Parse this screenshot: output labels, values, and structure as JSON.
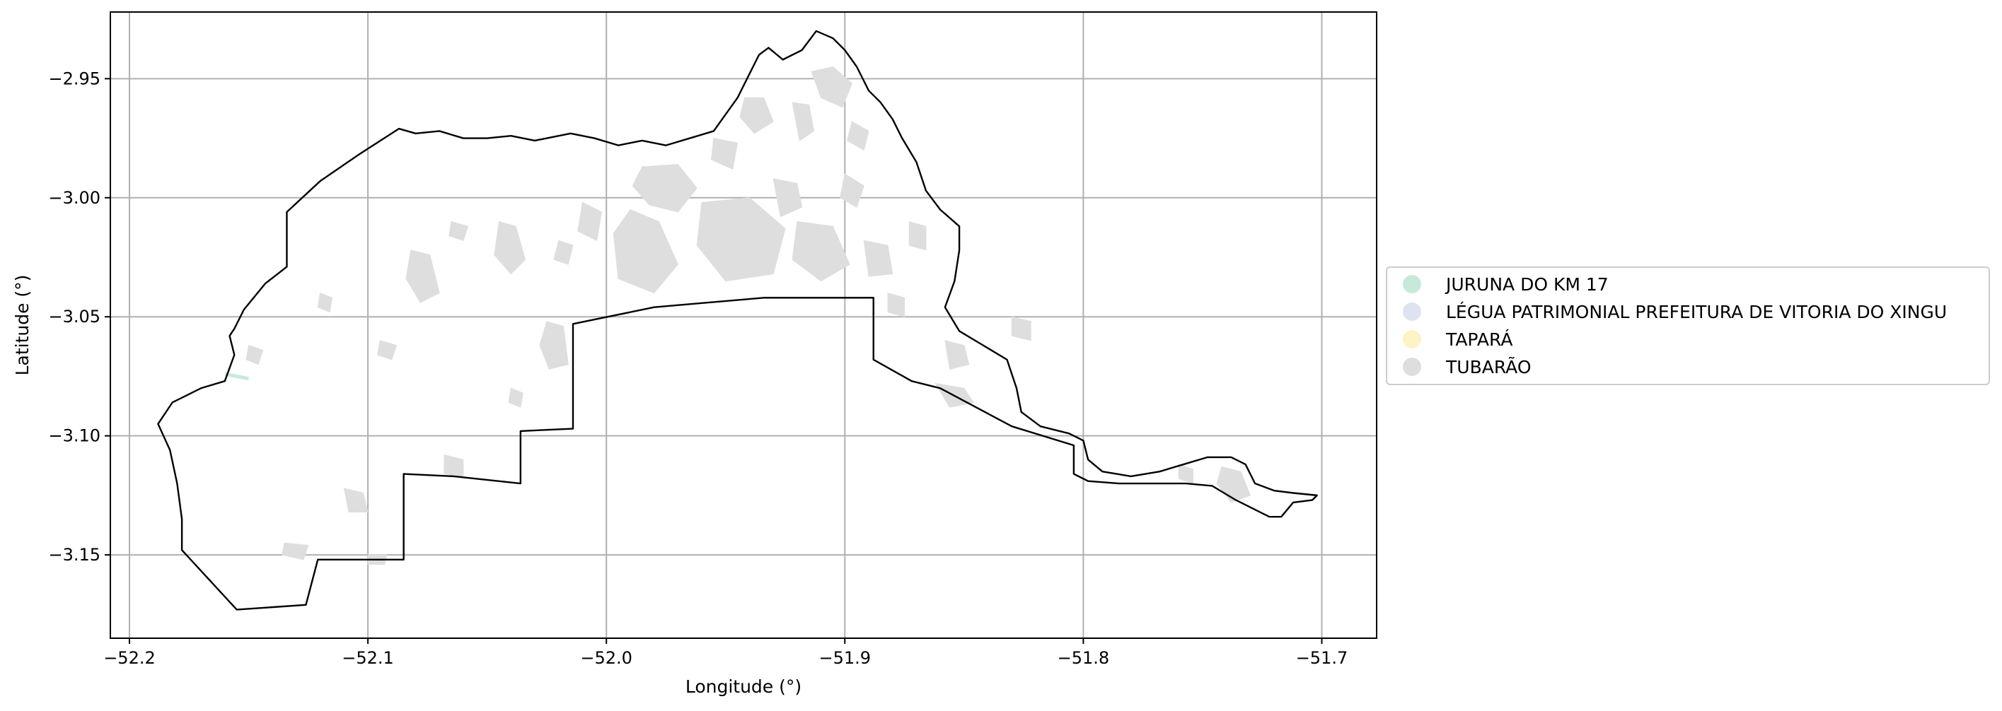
{
  "chart_data": {
    "type": "map",
    "xlabel": "Longitude (°)",
    "ylabel": "Latitude (°)",
    "xlim": [
      -52.208,
      -51.677
    ],
    "ylim": [
      -3.185,
      -2.922
    ],
    "x_ticks": [
      -52.2,
      -52.1,
      -52.0,
      -51.9,
      -51.8,
      -51.7
    ],
    "x_tick_labels": [
      "−52.2",
      "−52.1",
      "−52.0",
      "−51.9",
      "−51.8",
      "−51.7"
    ],
    "y_ticks": [
      -2.95,
      -3.0,
      -3.05,
      -3.1,
      -3.15
    ],
    "y_tick_labels": [
      "−2.95",
      "−3.00",
      "−3.05",
      "−3.10",
      "−3.15"
    ],
    "grid": true,
    "legend_position": "center-right-outside",
    "categories": [
      {
        "name": "JURUNA DO KM 17",
        "color": "#c7e9d9"
      },
      {
        "name": "LÉGUA PATRIMONIAL PREFEITURA DE VITORIA DO XINGU",
        "color": "#dfe3f1"
      },
      {
        "name": "TAPARÁ",
        "color": "#fdf3c4"
      },
      {
        "name": "TUBARÃO",
        "color": "#dedede"
      }
    ],
    "boundary": [
      [
        -52.087,
        -2.971
      ],
      [
        -52.08,
        -2.973
      ],
      [
        -52.07,
        -2.972
      ],
      [
        -52.06,
        -2.975
      ],
      [
        -52.05,
        -2.975
      ],
      [
        -52.04,
        -2.974
      ],
      [
        -52.03,
        -2.976
      ],
      [
        -52.015,
        -2.973
      ],
      [
        -52.005,
        -2.975
      ],
      [
        -51.995,
        -2.978
      ],
      [
        -51.985,
        -2.976
      ],
      [
        -51.975,
        -2.978
      ],
      [
        -51.965,
        -2.975
      ],
      [
        -51.955,
        -2.972
      ],
      [
        -51.95,
        -2.965
      ],
      [
        -51.945,
        -2.958
      ],
      [
        -51.94,
        -2.948
      ],
      [
        -51.936,
        -2.94
      ],
      [
        -51.932,
        -2.937
      ],
      [
        -51.926,
        -2.942
      ],
      [
        -51.918,
        -2.938
      ],
      [
        -51.912,
        -2.93
      ],
      [
        -51.905,
        -2.933
      ],
      [
        -51.9,
        -2.938
      ],
      [
        -51.895,
        -2.945
      ],
      [
        -51.89,
        -2.955
      ],
      [
        -51.885,
        -2.96
      ],
      [
        -51.88,
        -2.967
      ],
      [
        -51.876,
        -2.975
      ],
      [
        -51.87,
        -2.985
      ],
      [
        -51.866,
        -2.997
      ],
      [
        -51.86,
        -3.005
      ],
      [
        -51.852,
        -3.012
      ],
      [
        -51.852,
        -3.022
      ],
      [
        -51.854,
        -3.035
      ],
      [
        -51.858,
        -3.046
      ],
      [
        -51.852,
        -3.056
      ],
      [
        -51.842,
        -3.062
      ],
      [
        -51.832,
        -3.068
      ],
      [
        -51.828,
        -3.08
      ],
      [
        -51.826,
        -3.09
      ],
      [
        -51.818,
        -3.096
      ],
      [
        -51.806,
        -3.099
      ],
      [
        -51.8,
        -3.102
      ],
      [
        -51.798,
        -3.11
      ],
      [
        -51.792,
        -3.115
      ],
      [
        -51.78,
        -3.117
      ],
      [
        -51.768,
        -3.115
      ],
      [
        -51.758,
        -3.112
      ],
      [
        -51.748,
        -3.109
      ],
      [
        -51.738,
        -3.109
      ],
      [
        -51.732,
        -3.112
      ],
      [
        -51.728,
        -3.12
      ],
      [
        -51.72,
        -3.123
      ],
      [
        -51.712,
        -3.124
      ],
      [
        -51.702,
        -3.125
      ],
      [
        -51.704,
        -3.127
      ],
      [
        -51.712,
        -3.128
      ],
      [
        -51.717,
        -3.134
      ],
      [
        -51.722,
        -3.134
      ],
      [
        -51.736,
        -3.127
      ],
      [
        -51.746,
        -3.121
      ],
      [
        -51.757,
        -3.12
      ],
      [
        -51.77,
        -3.12
      ],
      [
        -51.785,
        -3.12
      ],
      [
        -51.798,
        -3.119
      ],
      [
        -51.804,
        -3.116
      ],
      [
        -51.804,
        -3.104
      ],
      [
        -51.83,
        -3.096
      ],
      [
        -51.86,
        -3.08
      ],
      [
        -51.872,
        -3.077
      ],
      [
        -51.888,
        -3.068
      ],
      [
        -51.888,
        -3.042
      ],
      [
        -51.934,
        -3.042
      ],
      [
        -51.98,
        -3.046
      ],
      [
        -52.014,
        -3.053
      ],
      [
        -52.014,
        -3.097
      ],
      [
        -52.036,
        -3.098
      ],
      [
        -52.036,
        -3.12
      ],
      [
        -52.064,
        -3.117
      ],
      [
        -52.085,
        -3.116
      ],
      [
        -52.085,
        -3.152
      ],
      [
        -52.121,
        -3.152
      ],
      [
        -52.126,
        -3.171
      ],
      [
        -52.155,
        -3.173
      ],
      [
        -52.178,
        -3.148
      ],
      [
        -52.178,
        -3.135
      ],
      [
        -52.18,
        -3.12
      ],
      [
        -52.183,
        -3.106
      ],
      [
        -52.188,
        -3.095
      ],
      [
        -52.182,
        -3.086
      ],
      [
        -52.17,
        -3.08
      ],
      [
        -52.16,
        -3.077
      ],
      [
        -52.156,
        -3.066
      ],
      [
        -52.158,
        -3.058
      ],
      [
        -52.156,
        -3.055
      ],
      [
        -52.152,
        -3.047
      ],
      [
        -52.143,
        -3.036
      ],
      [
        -52.134,
        -3.029
      ],
      [
        -52.134,
        -3.006
      ],
      [
        -52.12,
        -2.993
      ],
      [
        -52.104,
        -2.982
      ],
      [
        -52.087,
        -2.971
      ]
    ],
    "patches": [
      [
        [
          -51.914,
          -2.947
        ],
        [
          -51.905,
          -2.945
        ],
        [
          -51.897,
          -2.952
        ],
        [
          -51.901,
          -2.962
        ],
        [
          -51.91,
          -2.958
        ]
      ],
      [
        [
          -51.942,
          -2.958
        ],
        [
          -51.934,
          -2.958
        ],
        [
          -51.93,
          -2.968
        ],
        [
          -51.938,
          -2.973
        ],
        [
          -51.944,
          -2.966
        ]
      ],
      [
        [
          -51.922,
          -2.96
        ],
        [
          -51.915,
          -2.961
        ],
        [
          -51.913,
          -2.972
        ],
        [
          -51.919,
          -2.976
        ]
      ],
      [
        [
          -51.897,
          -2.968
        ],
        [
          -51.89,
          -2.972
        ],
        [
          -51.892,
          -2.98
        ],
        [
          -51.899,
          -2.976
        ]
      ],
      [
        [
          -51.955,
          -2.975
        ],
        [
          -51.945,
          -2.977
        ],
        [
          -51.947,
          -2.988
        ],
        [
          -51.956,
          -2.984
        ]
      ],
      [
        [
          -51.985,
          -2.987
        ],
        [
          -51.97,
          -2.986
        ],
        [
          -51.962,
          -2.996
        ],
        [
          -51.97,
          -3.006
        ],
        [
          -51.982,
          -3.003
        ],
        [
          -51.989,
          -2.995
        ]
      ],
      [
        [
          -51.93,
          -2.992
        ],
        [
          -51.92,
          -2.994
        ],
        [
          -51.918,
          -3.004
        ],
        [
          -51.927,
          -3.008
        ]
      ],
      [
        [
          -51.9,
          -2.99
        ],
        [
          -51.892,
          -2.995
        ],
        [
          -51.895,
          -3.004
        ],
        [
          -51.902,
          -3.0
        ]
      ],
      [
        [
          -51.96,
          -3.002
        ],
        [
          -51.94,
          -3.0
        ],
        [
          -51.925,
          -3.013
        ],
        [
          -51.93,
          -3.032
        ],
        [
          -51.95,
          -3.035
        ],
        [
          -51.962,
          -3.02
        ]
      ],
      [
        [
          -51.99,
          -3.005
        ],
        [
          -51.978,
          -3.01
        ],
        [
          -51.97,
          -3.028
        ],
        [
          -51.98,
          -3.04
        ],
        [
          -51.995,
          -3.034
        ],
        [
          -51.997,
          -3.015
        ]
      ],
      [
        [
          -52.01,
          -3.002
        ],
        [
          -52.002,
          -3.006
        ],
        [
          -52.004,
          -3.018
        ],
        [
          -52.012,
          -3.014
        ]
      ],
      [
        [
          -51.92,
          -3.01
        ],
        [
          -51.905,
          -3.012
        ],
        [
          -51.898,
          -3.028
        ],
        [
          -51.91,
          -3.035
        ],
        [
          -51.922,
          -3.026
        ]
      ],
      [
        [
          -51.892,
          -3.018
        ],
        [
          -51.882,
          -3.02
        ],
        [
          -51.88,
          -3.032
        ],
        [
          -51.89,
          -3.033
        ]
      ],
      [
        [
          -51.873,
          -3.01
        ],
        [
          -51.866,
          -3.012
        ],
        [
          -51.866,
          -3.022
        ],
        [
          -51.873,
          -3.02
        ]
      ],
      [
        [
          -52.045,
          -3.01
        ],
        [
          -52.038,
          -3.012
        ],
        [
          -52.034,
          -3.026
        ],
        [
          -52.04,
          -3.032
        ],
        [
          -52.047,
          -3.024
        ]
      ],
      [
        [
          -52.065,
          -3.01
        ],
        [
          -52.058,
          -3.012
        ],
        [
          -52.06,
          -3.018
        ],
        [
          -52.066,
          -3.016
        ]
      ],
      [
        [
          -52.082,
          -3.022
        ],
        [
          -52.074,
          -3.024
        ],
        [
          -52.07,
          -3.04
        ],
        [
          -52.078,
          -3.044
        ],
        [
          -52.084,
          -3.034
        ]
      ],
      [
        [
          -52.02,
          -3.018
        ],
        [
          -52.014,
          -3.02
        ],
        [
          -52.016,
          -3.028
        ],
        [
          -52.022,
          -3.026
        ]
      ],
      [
        [
          -52.025,
          -3.052
        ],
        [
          -52.018,
          -3.054
        ],
        [
          -52.016,
          -3.07
        ],
        [
          -52.024,
          -3.072
        ],
        [
          -52.028,
          -3.062
        ]
      ],
      [
        [
          -51.858,
          -3.06
        ],
        [
          -51.85,
          -3.062
        ],
        [
          -51.848,
          -3.07
        ],
        [
          -51.856,
          -3.072
        ]
      ],
      [
        [
          -51.862,
          -3.078
        ],
        [
          -51.85,
          -3.08
        ],
        [
          -51.846,
          -3.086
        ],
        [
          -51.856,
          -3.088
        ]
      ],
      [
        [
          -51.882,
          -3.04
        ],
        [
          -51.875,
          -3.042
        ],
        [
          -51.875,
          -3.05
        ],
        [
          -51.882,
          -3.048
        ]
      ],
      [
        [
          -51.83,
          -3.05
        ],
        [
          -51.822,
          -3.052
        ],
        [
          -51.822,
          -3.06
        ],
        [
          -51.83,
          -3.058
        ]
      ],
      [
        [
          -51.742,
          -3.113
        ],
        [
          -51.734,
          -3.115
        ],
        [
          -51.73,
          -3.125
        ],
        [
          -51.738,
          -3.128
        ],
        [
          -51.744,
          -3.12
        ]
      ],
      [
        [
          -51.76,
          -3.112
        ],
        [
          -51.754,
          -3.114
        ],
        [
          -51.754,
          -3.12
        ],
        [
          -51.76,
          -3.118
        ]
      ],
      [
        [
          -52.15,
          -3.062
        ],
        [
          -52.144,
          -3.064
        ],
        [
          -52.146,
          -3.07
        ],
        [
          -52.151,
          -3.068
        ]
      ],
      [
        [
          -52.11,
          -3.122
        ],
        [
          -52.102,
          -3.124
        ],
        [
          -52.1,
          -3.132
        ],
        [
          -52.108,
          -3.132
        ]
      ],
      [
        [
          -52.135,
          -3.145
        ],
        [
          -52.125,
          -3.146
        ],
        [
          -52.127,
          -3.152
        ],
        [
          -52.136,
          -3.15
        ]
      ],
      [
        [
          -52.068,
          -3.108
        ],
        [
          -52.06,
          -3.11
        ],
        [
          -52.06,
          -3.117
        ],
        [
          -52.068,
          -3.116
        ]
      ],
      [
        [
          -52.04,
          -3.08
        ],
        [
          -52.035,
          -3.082
        ],
        [
          -52.036,
          -3.088
        ],
        [
          -52.041,
          -3.086
        ]
      ],
      [
        [
          -52.095,
          -3.06
        ],
        [
          -52.088,
          -3.062
        ],
        [
          -52.09,
          -3.068
        ],
        [
          -52.096,
          -3.066
        ]
      ],
      [
        [
          -52.12,
          -3.04
        ],
        [
          -52.115,
          -3.042
        ],
        [
          -52.116,
          -3.048
        ],
        [
          -52.121,
          -3.046
        ]
      ],
      [
        [
          -52.1,
          -3.15
        ],
        [
          -52.092,
          -3.15
        ],
        [
          -52.093,
          -3.154
        ],
        [
          -52.1,
          -3.154
        ]
      ]
    ],
    "juruna_strip": [
      [
        -52.16,
        -3.074
      ],
      [
        -52.15,
        -3.076
      ]
    ]
  }
}
